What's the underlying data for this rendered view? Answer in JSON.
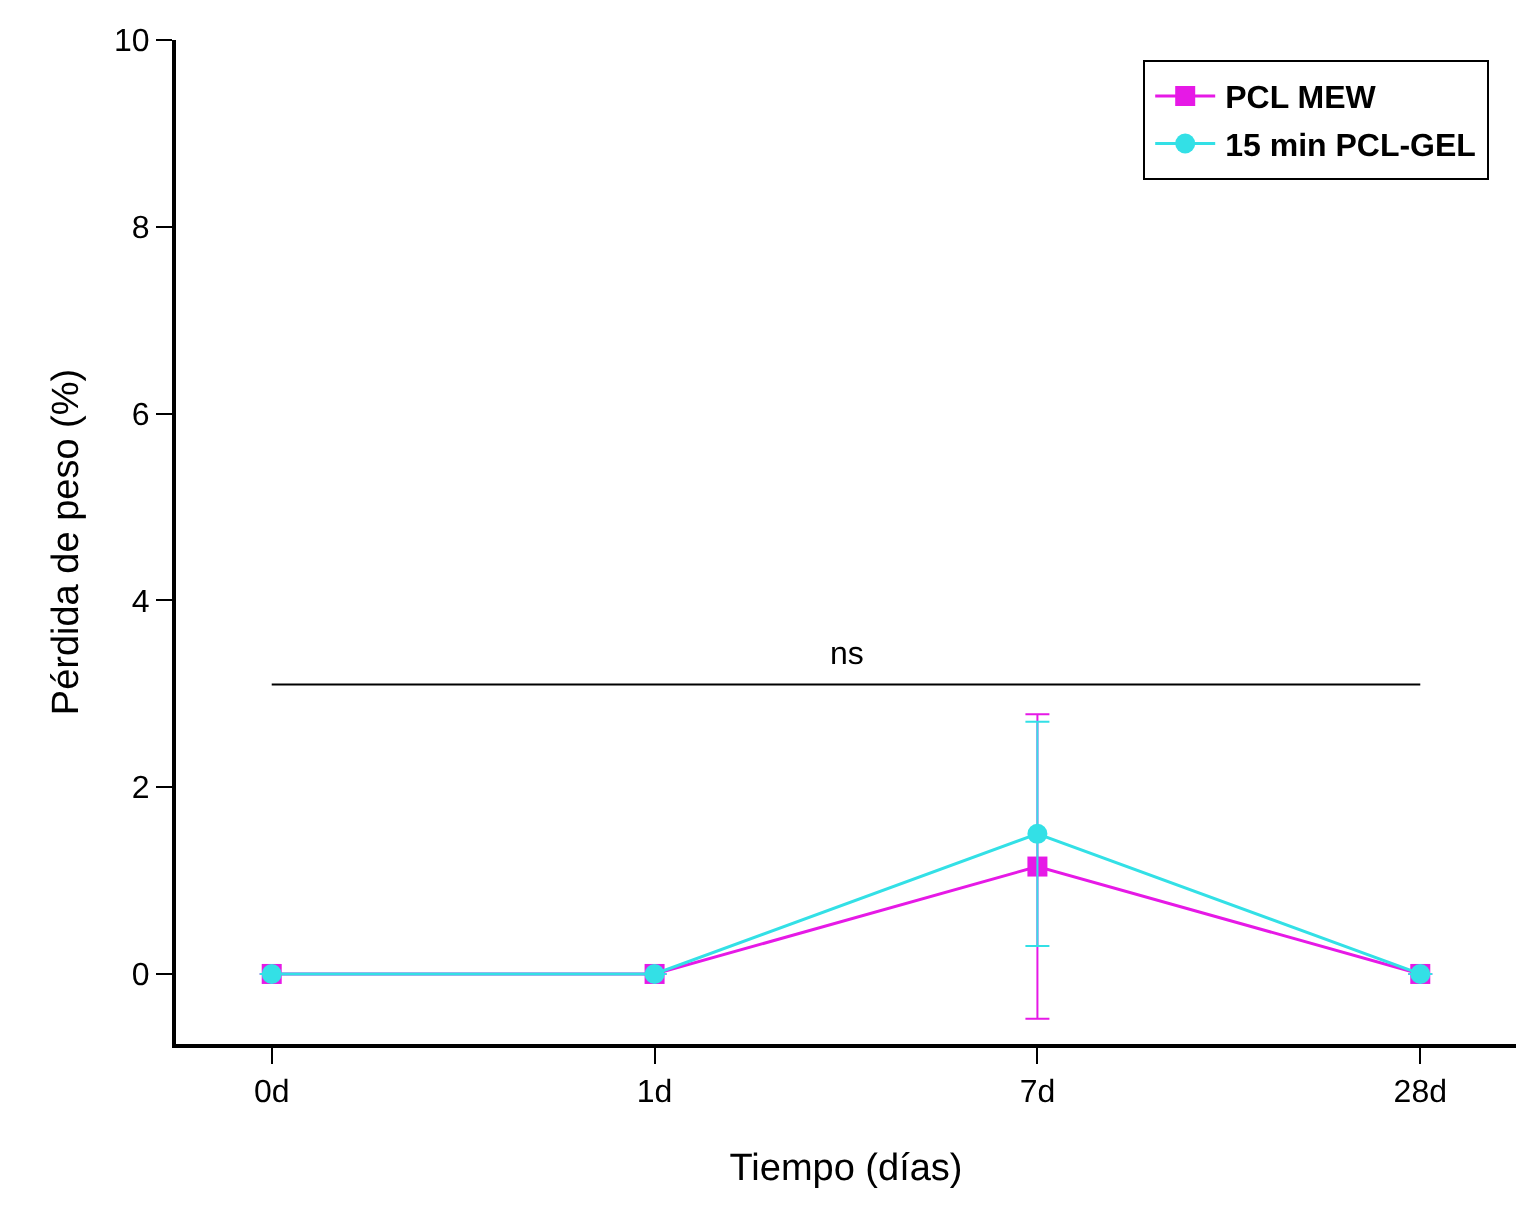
{
  "chart_data": {
    "type": "line",
    "xlabel": "Tiempo (días)",
    "ylabel": "Pérdida de peso (%)",
    "categories": [
      "0d",
      "1d",
      "7d",
      "28d"
    ],
    "series": [
      {
        "name": "PCL MEW",
        "color": "#e619e6",
        "marker": "square",
        "values": [
          0,
          0,
          1.15,
          0
        ],
        "errors": [
          null,
          null,
          1.63,
          null
        ]
      },
      {
        "name": "15 min PCL-GEL",
        "color": "#33e0e6",
        "marker": "circle",
        "values": [
          0,
          0,
          1.5,
          0
        ],
        "errors": [
          null,
          null,
          1.2,
          null
        ]
      }
    ],
    "ylim": [
      -0.75,
      10
    ],
    "yticks": [
      0,
      2,
      4,
      6,
      8,
      10
    ],
    "ref_lines": [
      {
        "axis": "y",
        "value": 3.1,
        "label": "ns"
      }
    ],
    "grid": false,
    "legend": "top right",
    "line_style": "solid"
  }
}
